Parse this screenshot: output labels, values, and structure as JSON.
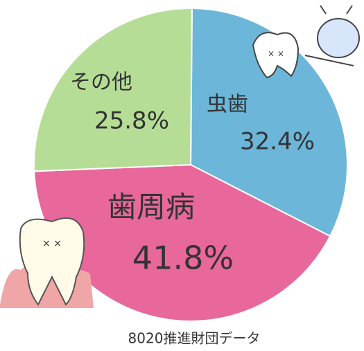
{
  "chart_data": {
    "type": "pie",
    "categories": [
      "虫歯",
      "歯周病",
      "その他"
    ],
    "values": [
      32.4,
      41.8,
      25.8
    ],
    "value_labels": [
      "32.4%",
      "41.8%",
      "25.8%"
    ],
    "colors": [
      "#6cb6da",
      "#e8689c",
      "#b5dd96"
    ],
    "source": "8020推進財団データ"
  }
}
